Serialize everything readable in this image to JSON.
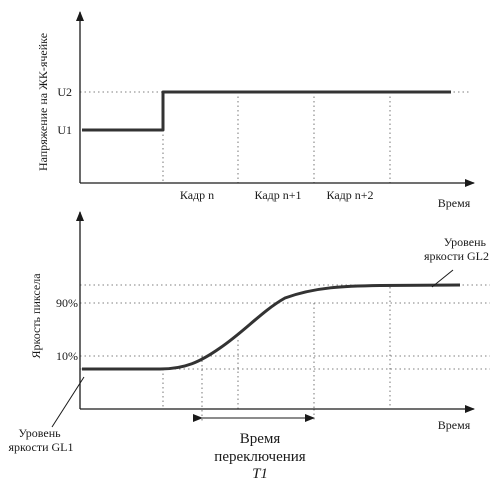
{
  "chart_data": [
    {
      "type": "line",
      "ylabel": "Напряжение на ЖК-ячейке",
      "xlabel": "Время",
      "y_ticks": [
        "U1",
        "U2"
      ],
      "frames": [
        "Кадр n",
        "Кадр n+1",
        "Кадр n+2"
      ],
      "series": [
        {
          "x": [
            0,
            1,
            1,
            4.8
          ],
          "y": [
            "U1",
            "U1",
            "U2",
            "U2"
          ]
        }
      ]
    },
    {
      "type": "line",
      "ylabel": "Яркость пиксела",
      "xlabel": "Время",
      "y_ticks": [
        "10%",
        "90%"
      ],
      "level_labels": {
        "gl1": "Уровень яркости GL1",
        "gl2": "Уровень яркости GL2"
      },
      "switch_time": {
        "line1": "Время",
        "line2": "переключения",
        "symbol": "T1",
        "from_frame": 1.5,
        "to_frame": 3.0
      }
    }
  ]
}
